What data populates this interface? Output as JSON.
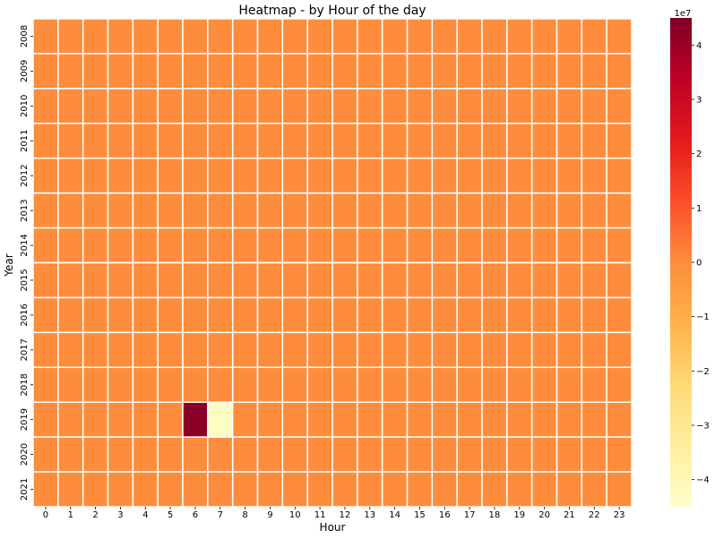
{
  "chart_data": {
    "type": "heatmap",
    "title": "Heatmap - by Hour of the day",
    "xlabel": "Hour",
    "ylabel": "Year",
    "x_categories": [
      "0",
      "1",
      "2",
      "3",
      "4",
      "5",
      "6",
      "7",
      "8",
      "9",
      "10",
      "11",
      "12",
      "13",
      "14",
      "15",
      "16",
      "17",
      "18",
      "19",
      "20",
      "21",
      "22",
      "23"
    ],
    "y_categories": [
      "2008",
      "2009",
      "2010",
      "2011",
      "2012",
      "2013",
      "2014",
      "2015",
      "2016",
      "2017",
      "2018",
      "2019",
      "2020",
      "2021"
    ],
    "default_value": 0,
    "nonzero_cells": [
      {
        "year": "2019",
        "hour": "6",
        "value": 43000000
      },
      {
        "year": "2019",
        "hour": "7",
        "value": -43000000
      }
    ],
    "colorbar": {
      "colormap": "YlOrRd",
      "range": [
        -45000000,
        45000000
      ],
      "ticks": [
        4,
        3,
        2,
        1,
        0,
        -1,
        -2,
        -3,
        -4
      ],
      "tick_labels": [
        "4",
        "3",
        "2",
        "1",
        "0",
        "−1",
        "−2",
        "−3",
        "−4"
      ],
      "multiplier_label": "1e7"
    },
    "cell_gridlines": "white"
  }
}
